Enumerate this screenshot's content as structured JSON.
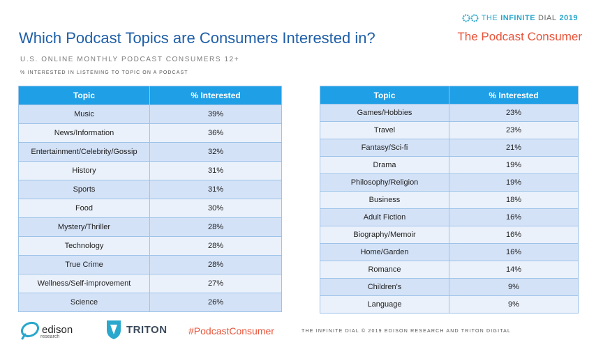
{
  "header": {
    "title": "Which Podcast Topics are Consumers Interested in?",
    "subtitle": "U.S. ONLINE MONTHLY PODCAST CONSUMERS 12+",
    "note": "% INTERESTED IN LISTENING TO TOPIC ON A PODCAST"
  },
  "brand": {
    "the": "THE",
    "infinite": "INFINITE",
    "dial": "DIAL",
    "year": "2019",
    "subtitle": "The Podcast Consumer"
  },
  "table_left": {
    "headers": [
      "Topic",
      "% Interested"
    ],
    "rows": [
      {
        "topic": "Music",
        "pct": "39%"
      },
      {
        "topic": "News/Information",
        "pct": "36%"
      },
      {
        "topic": "Entertainment/Celebrity/Gossip",
        "pct": "32%"
      },
      {
        "topic": "History",
        "pct": "31%"
      },
      {
        "topic": "Sports",
        "pct": "31%"
      },
      {
        "topic": "Food",
        "pct": "30%"
      },
      {
        "topic": "Mystery/Thriller",
        "pct": "28%"
      },
      {
        "topic": "Technology",
        "pct": "28%"
      },
      {
        "topic": "True Crime",
        "pct": "28%"
      },
      {
        "topic": "Wellness/Self-improvement",
        "pct": "27%"
      },
      {
        "topic": "Science",
        "pct": "26%"
      }
    ]
  },
  "table_right": {
    "headers": [
      "Topic",
      "% Interested"
    ],
    "rows": [
      {
        "topic": "Games/Hobbies",
        "pct": "23%"
      },
      {
        "topic": "Travel",
        "pct": "23%"
      },
      {
        "topic": "Fantasy/Sci-fi",
        "pct": "21%"
      },
      {
        "topic": "Drama",
        "pct": "19%"
      },
      {
        "topic": "Philosophy/Religion",
        "pct": "19%"
      },
      {
        "topic": "Business",
        "pct": "18%"
      },
      {
        "topic": "Adult Fiction",
        "pct": "16%"
      },
      {
        "topic": "Biography/Memoir",
        "pct": "16%"
      },
      {
        "topic": "Home/Garden",
        "pct": "16%"
      },
      {
        "topic": "Romance",
        "pct": "14%"
      },
      {
        "topic": "Children's",
        "pct": "9%"
      },
      {
        "topic": "Language",
        "pct": "9%"
      }
    ]
  },
  "footer": {
    "edison_word": "edison",
    "edison_small": "research",
    "triton_word": "TRITON",
    "hashtag": "#PodcastConsumer",
    "copyright": "THE INFINITE DIAL   © 2019 EDISON RESEARCH AND TRITON DIGITAL"
  },
  "colors": {
    "accent": "#1e9fe6",
    "title": "#1f5fa8",
    "highlight": "#e8543a"
  }
}
